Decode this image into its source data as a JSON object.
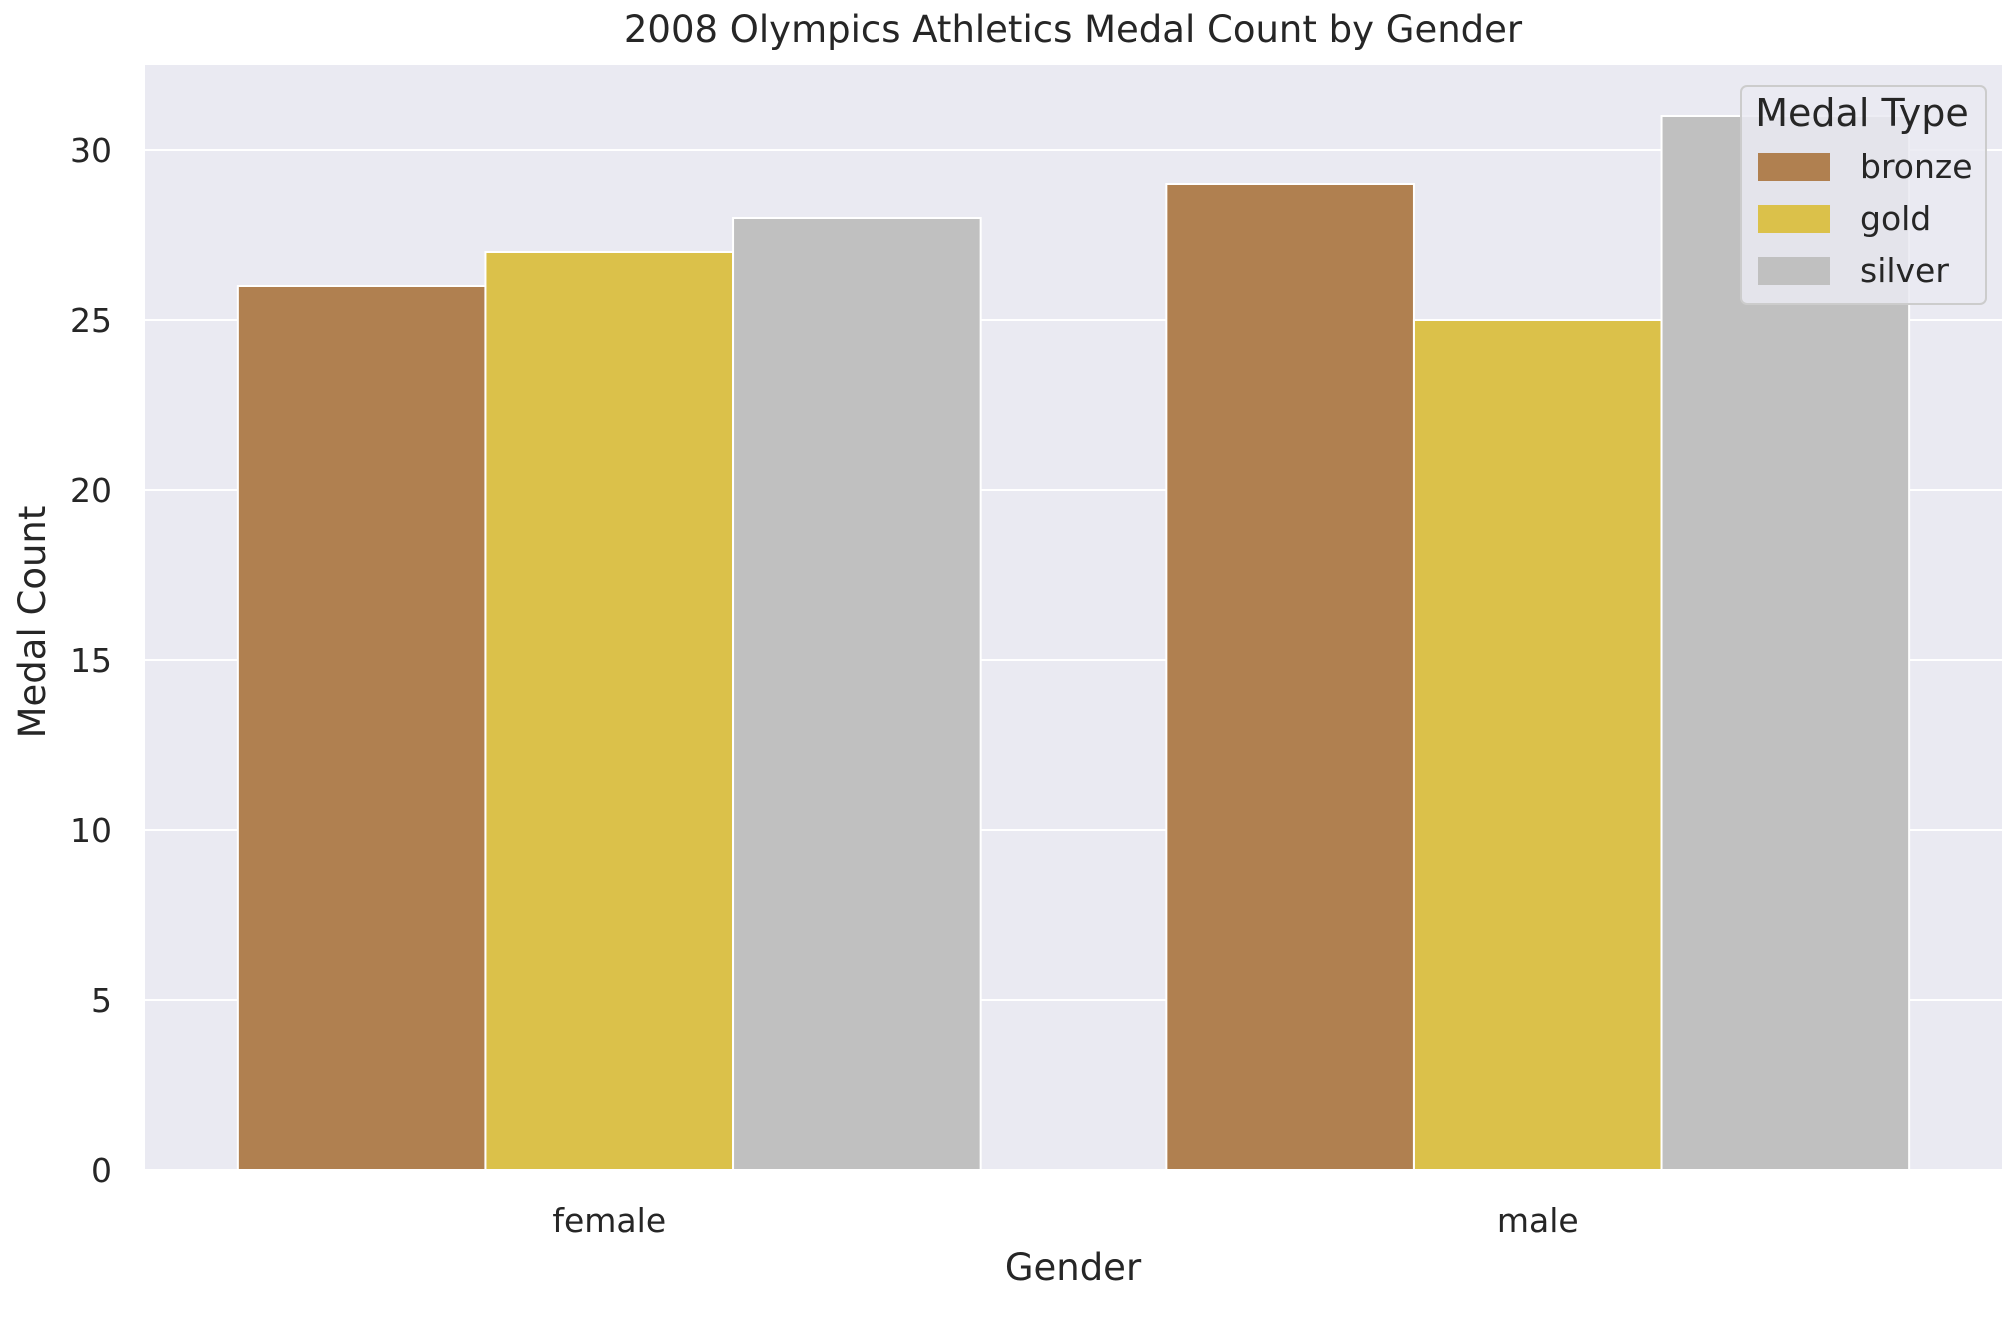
{
  "chart_data": {
    "type": "bar",
    "title": "2008 Olympics Athletics Medal Count by Gender",
    "xlabel": "Gender",
    "ylabel": "Medal Count",
    "categories": [
      "female",
      "male"
    ],
    "series": [
      {
        "name": "bronze",
        "values": [
          26,
          29
        ],
        "color": "#b08050"
      },
      {
        "name": "gold",
        "values": [
          27,
          25
        ],
        "color": "#dbc14a"
      },
      {
        "name": "silver",
        "values": [
          28,
          31
        ],
        "color": "#c0c0c0"
      }
    ],
    "ylim": [
      0,
      32.5
    ],
    "yticks": [
      0,
      5,
      10,
      15,
      20,
      25,
      30
    ],
    "grid": true,
    "legend": {
      "title": "Medal Type",
      "placement": "top-right"
    },
    "colors": {
      "plot_background": "#eaeaf2",
      "grid": "#ffffff",
      "text": "#262626"
    }
  }
}
